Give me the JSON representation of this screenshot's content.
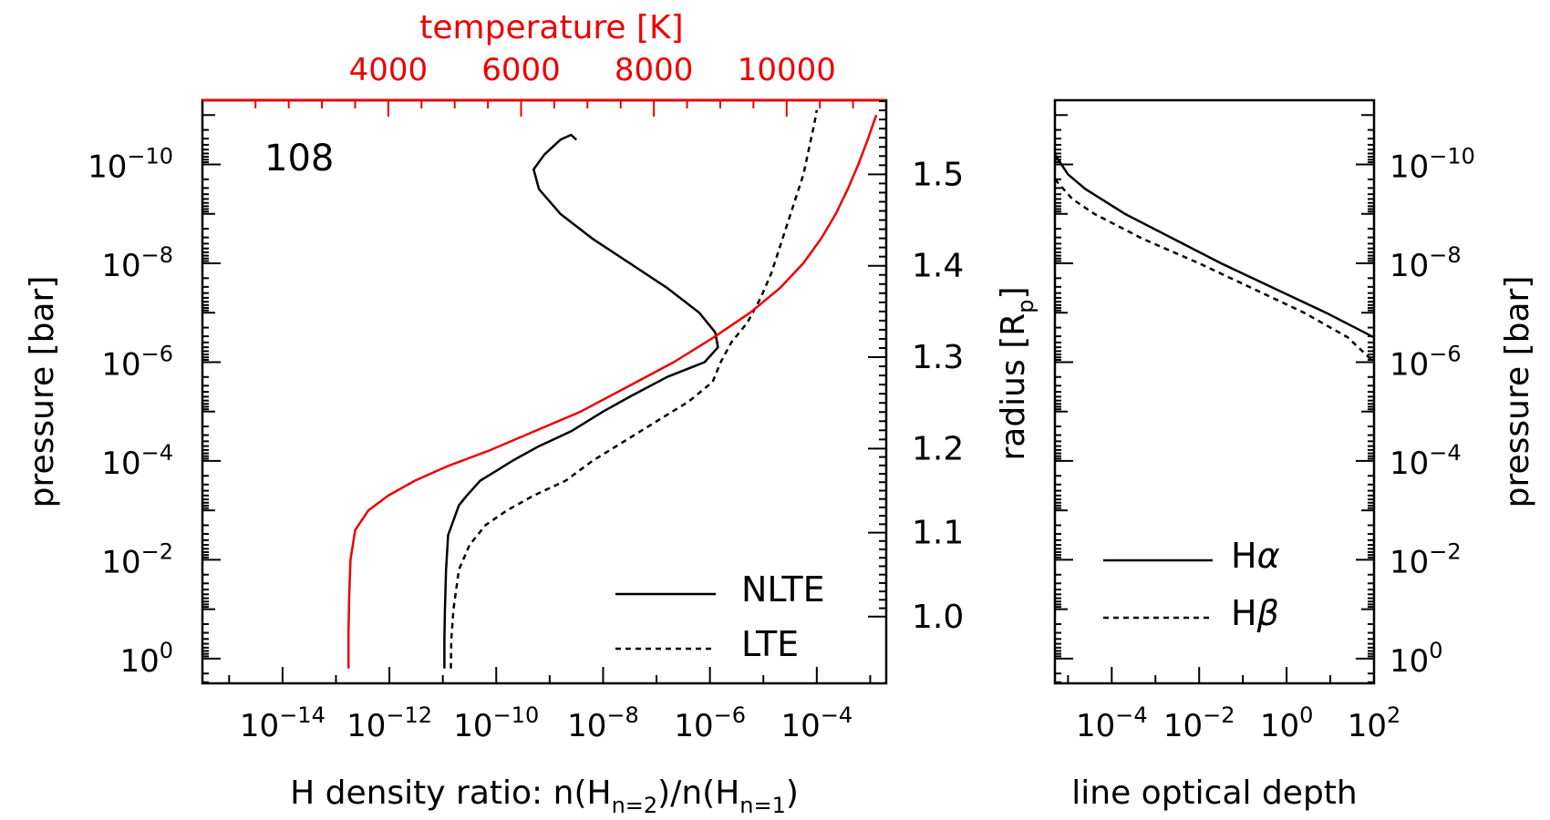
{
  "chart_data": [
    {
      "type": "line",
      "panel": "left",
      "annotation": "108",
      "xlabel": "H density ratio: n(H_n=2)/n(H_n=1)",
      "xlabel_parts": {
        "prefix": "H density ratio: n(H",
        "sub1": "n=2",
        "mid": ")/n(H",
        "sub2": "n=1",
        "suffix": ")"
      },
      "xscale": "log",
      "xlim_log10": [
        -15.5,
        -2.7
      ],
      "xticks": [
        {
          "exp": "-14",
          "log": -14
        },
        {
          "exp": "-12",
          "log": -12
        },
        {
          "exp": "-10",
          "log": -10
        },
        {
          "exp": "-8",
          "log": -8
        },
        {
          "exp": "-6",
          "log": -6
        },
        {
          "exp": "-4",
          "log": -4
        }
      ],
      "ylabel": "pressure [bar]",
      "yscale": "log",
      "ylim_log10": [
        0.5,
        -11.3
      ],
      "yticks": [
        {
          "exp": "0",
          "log": 0
        },
        {
          "exp": "-2",
          "log": -2
        },
        {
          "exp": "-4",
          "log": -4
        },
        {
          "exp": "-6",
          "log": -6
        },
        {
          "exp": "-8",
          "log": -8
        },
        {
          "exp": "-10",
          "log": -10
        }
      ],
      "top_axis": {
        "label": "temperature [K]",
        "color": "#ee0000",
        "range": [
          1200,
          11500
        ],
        "ticks": [
          4000,
          6000,
          8000,
          10000
        ],
        "tick_labels": [
          "4000",
          "6000",
          "8000",
          "10000"
        ]
      },
      "right_axis": {
        "label": "radius [R_p]",
        "label_main": "radius [R",
        "label_sub": "p",
        "label_end": "]",
        "tick_labels": [
          "1.0",
          "1.1",
          "1.2",
          "1.3",
          "1.4",
          "1.5"
        ],
        "ticks": [
          {
            "r": 1.0,
            "log_p": -0.85
          },
          {
            "r": 1.1,
            "log_p": -2.55
          },
          {
            "r": 1.2,
            "log_p": -4.25
          },
          {
            "r": 1.3,
            "log_p": -6.1
          },
          {
            "r": 1.4,
            "log_p": -7.95
          },
          {
            "r": 1.5,
            "log_p": -9.8
          }
        ]
      },
      "legend_position": "bottom-right",
      "series": [
        {
          "name": "NLTE",
          "color": "#000000",
          "dash": "solid",
          "log_p": [
            0.2,
            -0.4,
            -1.0,
            -1.8,
            -2.5,
            -2.8,
            -3.1,
            -3.3,
            -3.6,
            -3.8,
            -4.0,
            -4.3,
            -4.6,
            -5.0,
            -5.3,
            -5.7,
            -6.0,
            -6.3,
            -6.6,
            -7.0,
            -7.5,
            -8.0,
            -8.5,
            -9.0,
            -9.5,
            -9.9,
            -10.2,
            -10.5,
            -10.6,
            -10.5
          ],
          "log_x": [
            -10.97,
            -10.97,
            -10.96,
            -10.94,
            -10.9,
            -10.8,
            -10.7,
            -10.55,
            -10.3,
            -10.0,
            -9.7,
            -9.2,
            -8.6,
            -8.0,
            -7.5,
            -6.8,
            -6.1,
            -5.85,
            -5.9,
            -6.2,
            -6.8,
            -7.5,
            -8.2,
            -8.8,
            -9.2,
            -9.3,
            -9.1,
            -8.8,
            -8.6,
            -8.5
          ]
        },
        {
          "name": "LTE",
          "color": "#000000",
          "dash": "dashed",
          "log_p": [
            0.2,
            -0.4,
            -1.0,
            -1.8,
            -2.3,
            -2.7,
            -3.0,
            -3.3,
            -3.6,
            -4.0,
            -4.4,
            -4.8,
            -5.2,
            -5.6,
            -6.0,
            -6.4,
            -6.8,
            -7.3,
            -7.8,
            -8.3,
            -8.8,
            -9.3,
            -9.8,
            -10.3,
            -10.8,
            -11.1
          ],
          "log_x": [
            -10.85,
            -10.84,
            -10.8,
            -10.7,
            -10.5,
            -10.2,
            -9.8,
            -9.3,
            -8.7,
            -8.2,
            -7.6,
            -7.0,
            -6.4,
            -5.95,
            -5.8,
            -5.6,
            -5.3,
            -5.05,
            -4.85,
            -4.7,
            -4.55,
            -4.4,
            -4.25,
            -4.15,
            -4.05,
            -4.0
          ]
        },
        {
          "name": "temperature",
          "axis": "top",
          "color": "#ee0000",
          "dash": "solid",
          "log_p": [
            0.2,
            -0.5,
            -1.2,
            -2.0,
            -2.6,
            -3.0,
            -3.3,
            -3.6,
            -3.9,
            -4.2,
            -4.6,
            -5.0,
            -5.5,
            -6.0,
            -6.5,
            -7.0,
            -7.5,
            -8.0,
            -8.5,
            -9.0,
            -9.5,
            -10.0,
            -10.5,
            -11.0
          ],
          "T": [
            3400,
            3400,
            3410,
            3430,
            3500,
            3700,
            4000,
            4400,
            4900,
            5500,
            6200,
            6900,
            7600,
            8300,
            8900,
            9450,
            9900,
            10250,
            10520,
            10740,
            10920,
            11080,
            11220,
            11350
          ]
        }
      ]
    },
    {
      "type": "line",
      "panel": "right",
      "xlabel": "line optical depth",
      "xscale": "log",
      "xlim_log10": [
        -5.3,
        2.0
      ],
      "xticks": [
        {
          "exp": "-4",
          "log": -4
        },
        {
          "exp": "-2",
          "log": -2
        },
        {
          "exp": "0",
          "log": 0
        },
        {
          "exp": "2",
          "log": 2
        }
      ],
      "ylabel": "pressure [bar]",
      "yscale": "log",
      "ylim_log10": [
        0.5,
        -11.3
      ],
      "yticks": [
        {
          "exp": "0",
          "log": 0
        },
        {
          "exp": "-2",
          "log": -2
        },
        {
          "exp": "-4",
          "log": -4
        },
        {
          "exp": "-6",
          "log": -6
        },
        {
          "exp": "-8",
          "log": -8
        },
        {
          "exp": "-10",
          "log": -10
        }
      ],
      "legend_position": "lower-middle",
      "series": [
        {
          "name": "Hα",
          "legend_base": "H",
          "legend_greek": "α",
          "color": "#000000",
          "dash": "solid",
          "log_p": [
            -10.2,
            -9.8,
            -9.5,
            -9.0,
            -8.5,
            -8.0,
            -7.5,
            -7.0,
            -6.5
          ],
          "log_x": [
            -5.3,
            -5.0,
            -4.6,
            -3.7,
            -2.6,
            -1.5,
            -0.3,
            0.9,
            2.0
          ]
        },
        {
          "name": "Hβ",
          "legend_base": "H",
          "legend_greek": "β",
          "color": "#000000",
          "dash": "dashed",
          "log_p": [
            -9.7,
            -9.3,
            -9.0,
            -8.5,
            -8.0,
            -7.5,
            -7.0,
            -6.5,
            -6.0
          ],
          "log_x": [
            -5.3,
            -4.9,
            -4.4,
            -3.3,
            -2.0,
            -0.8,
            0.4,
            1.4,
            2.0
          ]
        }
      ]
    }
  ]
}
